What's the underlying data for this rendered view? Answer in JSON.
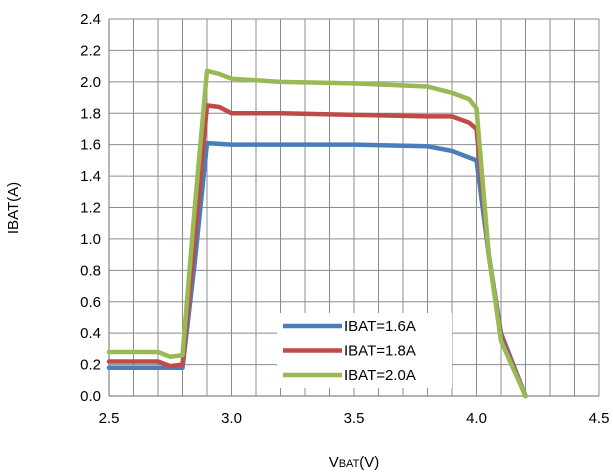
{
  "chart_data": {
    "type": "line",
    "title": "",
    "xlabel": "VBAT(V)",
    "xlabel_main": "V",
    "xlabel_sub": "BAT",
    "xlabel_unit": "(V)",
    "ylabel": "IBAT(A)",
    "xlim": [
      2.5,
      4.5
    ],
    "ylim": [
      0,
      2.4
    ],
    "xticks": [
      "2.5",
      "3.0",
      "3.5",
      "4.0",
      "4.5"
    ],
    "yticks": [
      "0.0",
      "0.2",
      "0.4",
      "0.6",
      "0.8",
      "1.0",
      "1.2",
      "1.4",
      "1.6",
      "1.8",
      "2.0",
      "2.2",
      "2.4"
    ],
    "grid": true,
    "legend_position": "bottom-center",
    "series": [
      {
        "name": "IBAT=1.6A",
        "color": "#4a7ebb",
        "x": [
          2.5,
          2.7,
          2.8,
          2.85,
          2.9,
          3.0,
          3.2,
          3.5,
          3.8,
          3.9,
          4.0,
          4.05,
          4.1,
          4.2
        ],
        "y": [
          0.18,
          0.18,
          0.18,
          0.85,
          1.61,
          1.6,
          1.6,
          1.6,
          1.59,
          1.56,
          1.5,
          0.9,
          0.4,
          0.0
        ]
      },
      {
        "name": "IBAT=1.8A",
        "color": "#be4b48",
        "x": [
          2.5,
          2.7,
          2.75,
          2.8,
          2.85,
          2.9,
          2.95,
          3.0,
          3.2,
          3.5,
          3.8,
          3.9,
          3.97,
          4.0,
          4.05,
          4.1,
          4.2
        ],
        "y": [
          0.22,
          0.22,
          0.19,
          0.2,
          1.0,
          1.85,
          1.84,
          1.8,
          1.8,
          1.79,
          1.78,
          1.78,
          1.74,
          1.7,
          0.9,
          0.38,
          0.0
        ]
      },
      {
        "name": "IBAT=2.0A",
        "color": "#98b954",
        "x": [
          2.5,
          2.7,
          2.75,
          2.8,
          2.85,
          2.9,
          2.95,
          3.0,
          3.2,
          3.5,
          3.8,
          3.9,
          3.97,
          4.0,
          4.05,
          4.1,
          4.2
        ],
        "y": [
          0.28,
          0.28,
          0.25,
          0.26,
          1.2,
          2.07,
          2.05,
          2.02,
          2.0,
          1.99,
          1.97,
          1.93,
          1.89,
          1.83,
          0.9,
          0.35,
          0.0
        ]
      }
    ]
  }
}
